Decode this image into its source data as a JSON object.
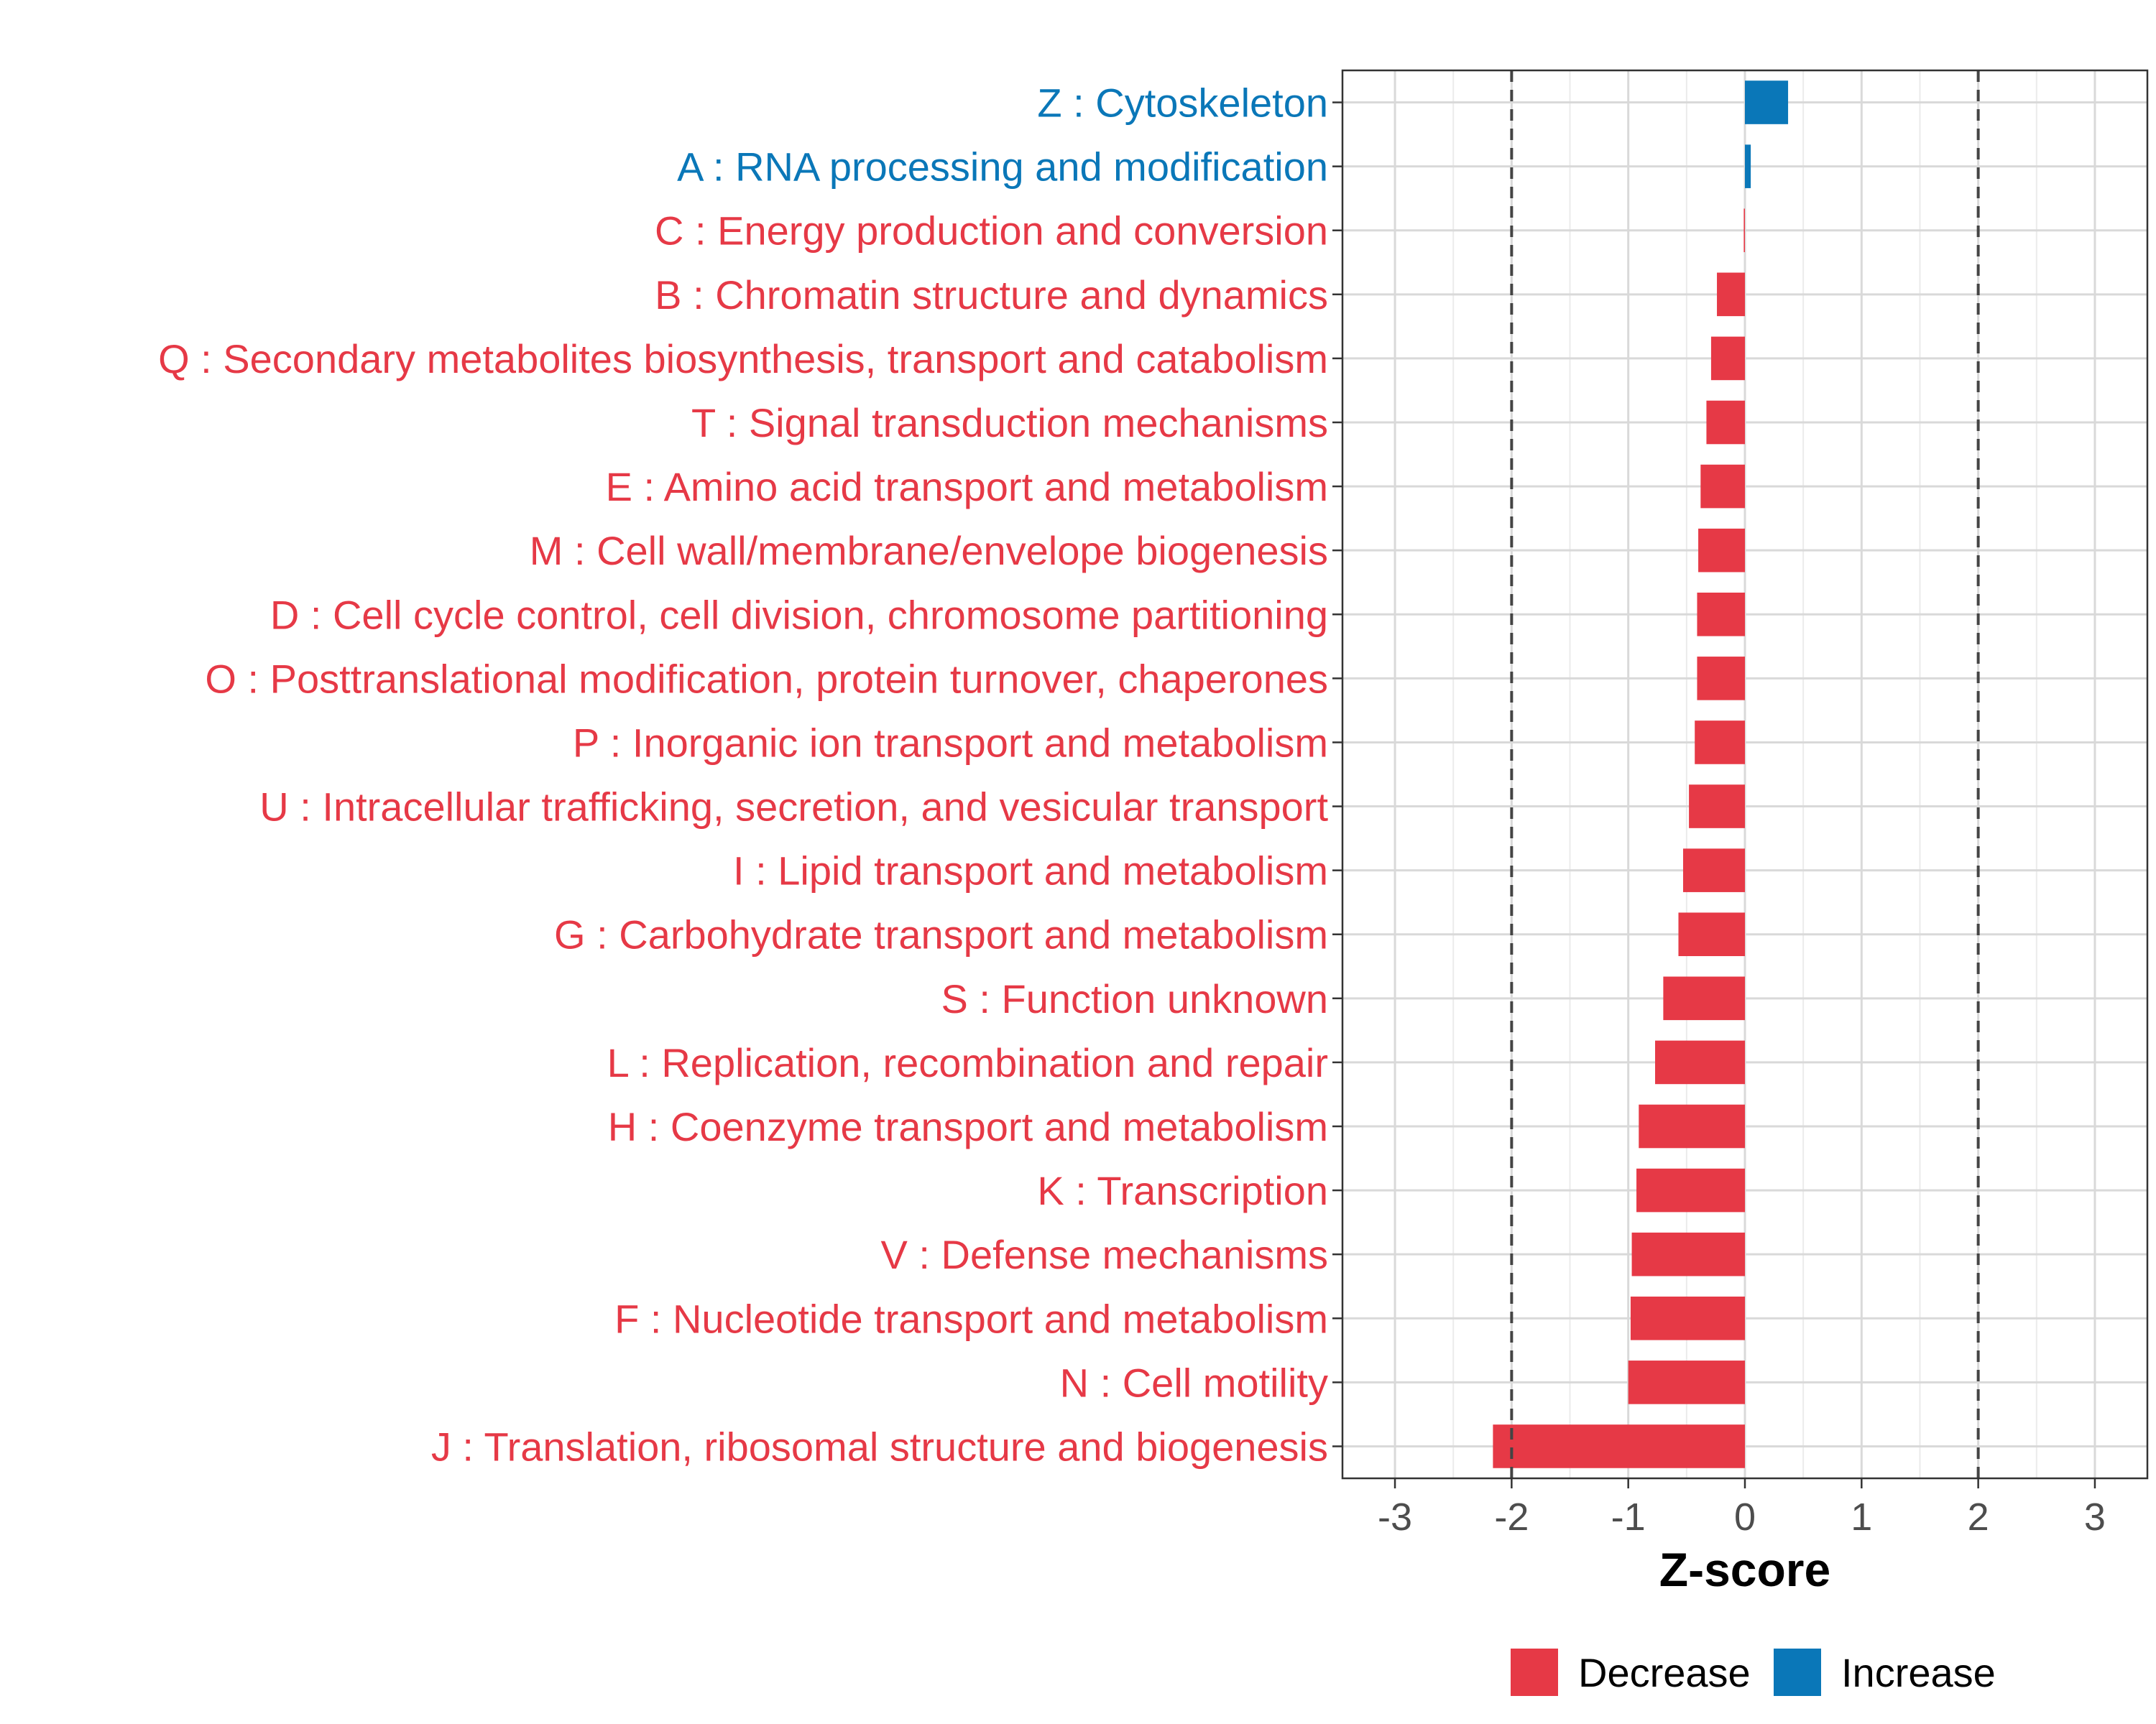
{
  "chart_data": {
    "type": "bar",
    "orientation": "horizontal",
    "title": "",
    "xlabel": "Z-score",
    "ylabel": "",
    "xlim": [
      -3.45,
      3.45
    ],
    "xticks": [
      -3,
      -2,
      -1,
      0,
      1,
      2,
      3
    ],
    "reference_lines": [
      -2,
      2
    ],
    "grid": true,
    "legend_position": "bottom",
    "categories": [
      "Z : Cytoskeleton",
      "A : RNA processing and modification",
      "C : Energy production and conversion",
      "B : Chromatin structure and dynamics",
      "Q : Secondary metabolites biosynthesis, transport and catabolism",
      "T : Signal transduction mechanisms",
      "E : Amino acid transport and metabolism",
      "M : Cell wall/membrane/envelope biogenesis",
      "D : Cell cycle control, cell division, chromosome partitioning",
      "O : Posttranslational modification, protein turnover, chaperones",
      "P : Inorganic ion transport and metabolism",
      "U : Intracellular trafficking, secretion, and vesicular transport",
      "I : Lipid transport and metabolism",
      "G : Carbohydrate transport and metabolism",
      "S : Function unknown",
      "L : Replication, recombination and repair",
      "H : Coenzyme transport and metabolism",
      "K : Transcription",
      "V : Defense mechanisms",
      "F : Nucleotide transport and metabolism",
      "N : Cell motility",
      "J : Translation, ribosomal structure and biogenesis"
    ],
    "values": [
      0.37,
      0.05,
      -0.01,
      -0.24,
      -0.29,
      -0.33,
      -0.38,
      -0.4,
      -0.41,
      -0.41,
      -0.43,
      -0.48,
      -0.53,
      -0.57,
      -0.7,
      -0.77,
      -0.91,
      -0.93,
      -0.97,
      -0.98,
      -1.0,
      -2.16
    ],
    "groups": [
      "Increase",
      "Increase",
      "Decrease",
      "Decrease",
      "Decrease",
      "Decrease",
      "Decrease",
      "Decrease",
      "Decrease",
      "Decrease",
      "Decrease",
      "Decrease",
      "Decrease",
      "Decrease",
      "Decrease",
      "Decrease",
      "Decrease",
      "Decrease",
      "Decrease",
      "Decrease",
      "Decrease",
      "Decrease"
    ],
    "legend": [
      {
        "name": "Decrease",
        "color": "#e63946"
      },
      {
        "name": "Increase",
        "color": "#0a77b8"
      }
    ]
  }
}
